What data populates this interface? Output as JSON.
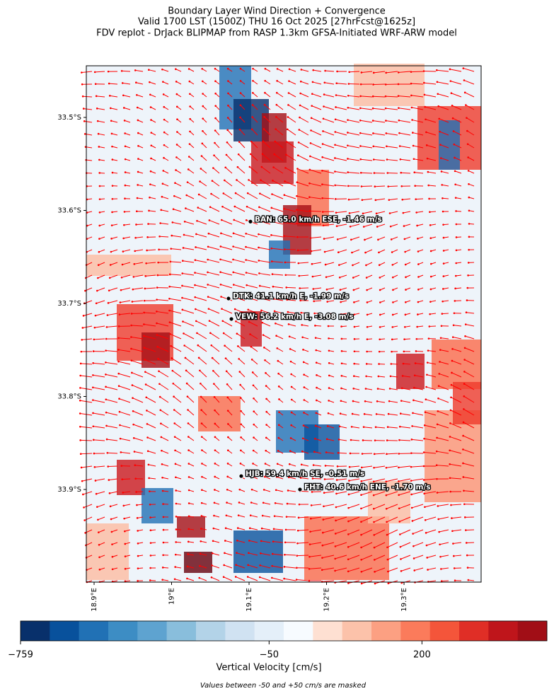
{
  "chart_data": {
    "type": "map",
    "title": [
      "Boundary Layer Wind Direction + Convergence",
      "Valid 1700 LST (1500Z) THU 16 Oct 2025 [27hrFcst@1625z]",
      "FDV replot - DrJack BLIPMAP from RASP 1.3km GFSA-Initiated WRF-ARW model"
    ],
    "xlim": [
      18.88996,
      19.3995
    ],
    "ylim": [
      -33.9996,
      -33.4445
    ],
    "xticks": [
      {
        "value": 18.9,
        "label": "18.9°E"
      },
      {
        "value": 19.0,
        "label": "19°E"
      },
      {
        "value": 19.1,
        "label": "19.1°E"
      },
      {
        "value": 19.2,
        "label": "19.2°E"
      },
      {
        "value": 19.3,
        "label": "19.3°E"
      }
    ],
    "yticks": [
      {
        "value": -33.5,
        "label": "33.5°S"
      },
      {
        "value": -33.6,
        "label": "33.6°S"
      },
      {
        "value": -33.7,
        "label": "33.7°S"
      },
      {
        "value": -33.8,
        "label": "33.8°S"
      },
      {
        "value": -33.9,
        "label": "33.9°S"
      }
    ],
    "stations": [
      {
        "label": "BAN: 65.0 km/h ESE, -1.46 m/s",
        "lon": 19.1018,
        "lat": -33.612
      },
      {
        "label": "DTK: 41.1 km/h E, -1.99 m/s",
        "lon": 19.0735,
        "lat": -33.6947
      },
      {
        "label": "VEW: 56.2 km/h E, -3.08 m/s",
        "lon": 19.0772,
        "lat": -33.7167
      },
      {
        "label": "HJB: 59.4 km/h SE, -0.51 m/s",
        "lon": 19.0899,
        "lat": -33.8856
      },
      {
        "label": "FHT: 40.6 km/h ENE, -1.70 m/s",
        "lon": 19.1657,
        "lat": -33.9
      }
    ],
    "colorbar": {
      "label": "Vertical Velocity [cm/s]",
      "bounds": [
        -759,
        -676,
        -592,
        -509,
        -426,
        -342,
        -259,
        -175,
        -92,
        -8,
        36,
        80,
        124,
        168,
        212,
        256,
        300,
        344,
        388
      ],
      "colors": [
        "#08306b",
        "#08519c",
        "#2171b5",
        "#3d8dc4",
        "#5ea3d0",
        "#89bedc",
        "#b3d3e8",
        "#d0e2f2",
        "#e4eff9",
        "#f7fbff",
        "#fee0d2",
        "#fcc2aa",
        "#fca082",
        "#fb7b5b",
        "#f4553a",
        "#e02e26",
        "#bf151b",
        "#a10e16",
        "#67000d"
      ],
      "ticks": [
        {
          "value": -759,
          "label": "−759"
        },
        {
          "value": -50,
          "label": "−50"
        },
        {
          "value": 200,
          "label": "200"
        }
      ]
    },
    "footnote": "Values between -50 and +50 cm/s are masked"
  }
}
